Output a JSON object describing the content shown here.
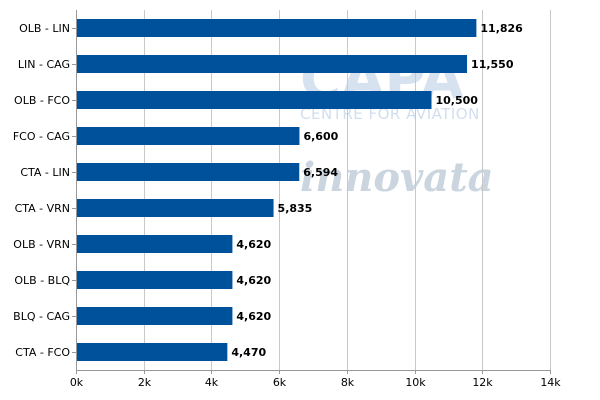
{
  "chart_data": {
    "type": "bar",
    "orientation": "horizontal",
    "title": "",
    "xlabel": "",
    "ylabel": "",
    "categories": [
      "OLB - LIN",
      "LIN - CAG",
      "OLB - FCO",
      "FCO - CAG",
      "CTA - LIN",
      "CTA - VRN",
      "OLB - VRN",
      "OLB - BLQ",
      "BLQ - CAG",
      "CTA - FCO"
    ],
    "values": [
      11826,
      11550,
      10500,
      6600,
      6594,
      5835,
      4620,
      4620,
      4620,
      4470
    ],
    "value_labels": [
      "11,826",
      "11,550",
      "10,500",
      "6,600",
      "6,594",
      "5,835",
      "4,620",
      "4,620",
      "4,620",
      "4,470"
    ],
    "xlim": [
      0,
      14000
    ],
    "x_ticks": [
      0,
      2000,
      4000,
      6000,
      8000,
      10000,
      12000,
      14000
    ],
    "x_tick_labels": [
      "0k",
      "2k",
      "4k",
      "6k",
      "8k",
      "10k",
      "12k",
      "14k"
    ],
    "grid": "vertical",
    "legend": "none",
    "bar_color": "#00519c",
    "grid_color": "#c8c8c8"
  },
  "watermarks": {
    "capa": "CAPA",
    "capa_sub": "CENTRE FOR AVIATION",
    "innovata": "innovata"
  }
}
